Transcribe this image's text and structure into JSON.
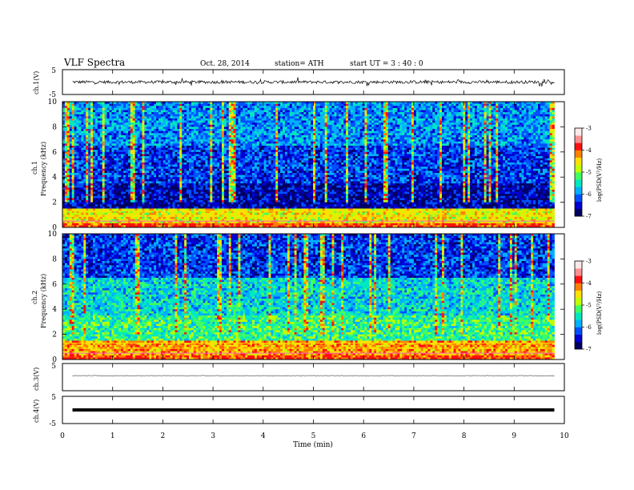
{
  "header": {
    "title": "VLF  Spectra",
    "date": "Oct. 28, 2014",
    "station": "station= ATH",
    "start": "start  UT  =   3  : 40 : 0"
  },
  "chart_data": {
    "type": "heatmap",
    "xlabel": "Time  (min)",
    "x_ticks": [
      "0",
      "1",
      "2",
      "3",
      "4",
      "5",
      "6",
      "7",
      "8",
      "9",
      "10"
    ],
    "xlim": [
      0,
      10
    ],
    "data_end_min": 9.8,
    "panels": [
      {
        "id": "ch1-wave",
        "type": "line",
        "ylabel": "ch.1(V)",
        "ylim": [
          -5,
          5
        ],
        "y_ticks": [
          "5",
          "-5"
        ],
        "amplitude_v": 0.6,
        "spike_v": 1.5
      },
      {
        "id": "ch1-spec",
        "type": "heatmap",
        "ylabel_top": "ch.1",
        "ylabel": "Frequency  (kHz)",
        "ylim": [
          0,
          10
        ],
        "y_ticks": [
          "0",
          "2",
          "4",
          "6",
          "8",
          "10"
        ],
        "colorbar": {
          "label": "log(PSD(V²/Hz)",
          "ticks": [
            "-3",
            "-4",
            "-5",
            "-6",
            "-7"
          ],
          "range": [
            -7,
            -3
          ]
        }
      },
      {
        "id": "ch2-spec",
        "type": "heatmap",
        "ylabel_top": "ch.2",
        "ylabel": "Frequency  (kHz)",
        "ylim": [
          0,
          10
        ],
        "y_ticks": [
          "0",
          "2",
          "4",
          "6",
          "8",
          "10"
        ],
        "colorbar": {
          "label": "log(PSD(V²/Hz)",
          "ticks": [
            "-3",
            "-4",
            "-5",
            "-6",
            "-7"
          ],
          "range": [
            -7,
            -3
          ]
        }
      },
      {
        "id": "ch3-wave",
        "type": "line",
        "ylabel": "ch.3(V)",
        "ylim": [
          -5,
          5
        ],
        "y_ticks": [
          "5"
        ],
        "amplitude_v": 0.15,
        "offset_v": 0.5
      },
      {
        "id": "ch4-wave",
        "type": "line",
        "ylabel": "ch.4(V)",
        "ylim": [
          -5,
          5
        ],
        "y_ticks": [
          "5",
          "-5"
        ],
        "amplitude_v": 0.05,
        "offset_v": 0.0
      }
    ]
  },
  "colors": {
    "scale": [
      "#000060",
      "#0000d0",
      "#0050ff",
      "#00b0ff",
      "#00e8c0",
      "#40ff60",
      "#c0ff00",
      "#ffe000",
      "#ff8000",
      "#ff1010",
      "#ff9090",
      "#ffe8e8"
    ],
    "trace": "#000000",
    "frame": "#000000"
  }
}
